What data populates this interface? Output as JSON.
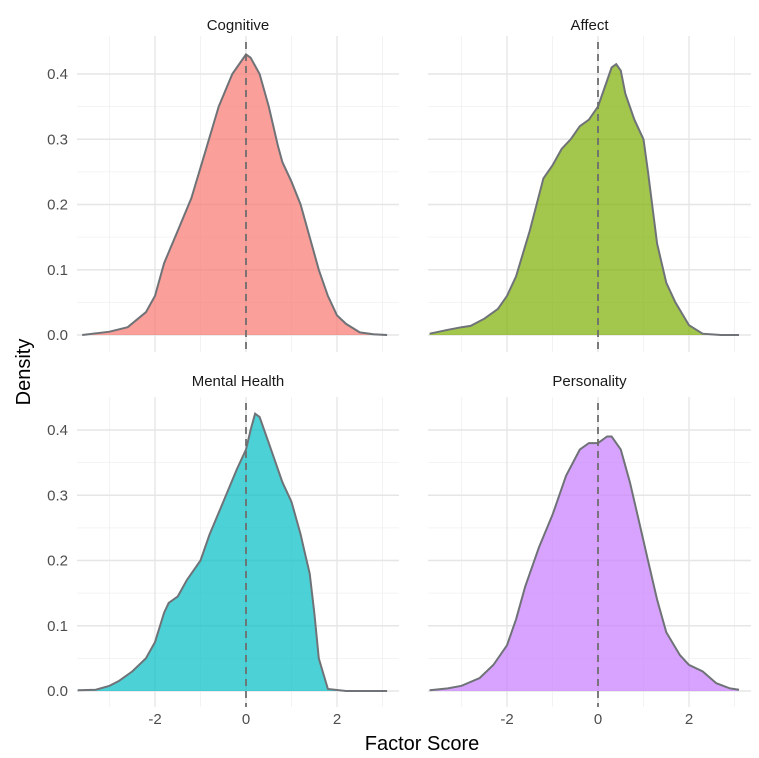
{
  "chart_data": {
    "type": "area",
    "xlabel": "Factor Score",
    "ylabel": "Density",
    "xlim": [
      -3.7,
      3.2
    ],
    "ylim": [
      0,
      0.43
    ],
    "x_ticks": [
      -2,
      0,
      2
    ],
    "y_ticks": [
      0.0,
      0.1,
      0.2,
      0.3,
      0.4
    ],
    "y_tick_labels": [
      "0.0",
      "0.1",
      "0.2",
      "0.3",
      "0.4"
    ],
    "x_tick_labels": [
      "-2",
      "0",
      "2"
    ],
    "reference_line_x": 0,
    "grid": true,
    "legend": "none",
    "panels": [
      {
        "name": "Cognitive",
        "color": "#F8766D",
        "x": [
          -3.6,
          -3.0,
          -2.6,
          -2.2,
          -2.0,
          -1.8,
          -1.5,
          -1.2,
          -0.9,
          -0.6,
          -0.3,
          -0.1,
          0.0,
          0.1,
          0.3,
          0.5,
          0.7,
          0.8,
          1.0,
          1.2,
          1.4,
          1.6,
          1.8,
          2.0,
          2.2,
          2.5,
          2.8,
          3.1
        ],
        "y": [
          0.0,
          0.005,
          0.012,
          0.035,
          0.06,
          0.11,
          0.16,
          0.21,
          0.28,
          0.35,
          0.4,
          0.42,
          0.43,
          0.425,
          0.4,
          0.35,
          0.29,
          0.265,
          0.235,
          0.2,
          0.15,
          0.1,
          0.06,
          0.03,
          0.017,
          0.004,
          0.001,
          0.0
        ]
      },
      {
        "name": "Affect",
        "color": "#7CAE00",
        "x": [
          -3.7,
          -3.3,
          -3.0,
          -2.8,
          -2.5,
          -2.2,
          -2.0,
          -1.8,
          -1.5,
          -1.2,
          -1.0,
          -0.8,
          -0.6,
          -0.4,
          -0.2,
          0.0,
          0.2,
          0.3,
          0.4,
          0.5,
          0.6,
          0.8,
          1.0,
          1.1,
          1.3,
          1.5,
          1.7,
          2.0,
          2.3,
          2.7,
          3.1
        ],
        "y": [
          0.002,
          0.008,
          0.012,
          0.014,
          0.025,
          0.04,
          0.06,
          0.09,
          0.16,
          0.24,
          0.26,
          0.285,
          0.3,
          0.32,
          0.33,
          0.35,
          0.39,
          0.41,
          0.415,
          0.405,
          0.37,
          0.33,
          0.3,
          0.25,
          0.14,
          0.08,
          0.05,
          0.015,
          0.002,
          0.0,
          0.0
        ]
      },
      {
        "name": "Mental Health",
        "color": "#00BFC4",
        "x": [
          -3.7,
          -3.3,
          -3.0,
          -2.8,
          -2.5,
          -2.2,
          -2.0,
          -1.8,
          -1.7,
          -1.5,
          -1.3,
          -1.0,
          -0.8,
          -0.5,
          -0.2,
          0.0,
          0.1,
          0.2,
          0.3,
          0.5,
          0.8,
          1.0,
          1.2,
          1.3,
          1.4,
          1.5,
          1.6,
          1.8,
          2.2,
          2.7,
          3.1
        ],
        "y": [
          0.001,
          0.002,
          0.008,
          0.015,
          0.03,
          0.05,
          0.075,
          0.12,
          0.135,
          0.145,
          0.17,
          0.2,
          0.24,
          0.29,
          0.34,
          0.37,
          0.4,
          0.425,
          0.42,
          0.38,
          0.32,
          0.29,
          0.24,
          0.21,
          0.18,
          0.12,
          0.05,
          0.003,
          0.0,
          0.0,
          0.0
        ]
      },
      {
        "name": "Personality",
        "color": "#C77CFF",
        "x": [
          -3.7,
          -3.3,
          -3.0,
          -2.6,
          -2.3,
          -2.0,
          -1.8,
          -1.6,
          -1.3,
          -1.0,
          -0.7,
          -0.4,
          -0.2,
          0.0,
          0.2,
          0.3,
          0.5,
          0.7,
          0.9,
          1.1,
          1.3,
          1.5,
          1.8,
          2.0,
          2.3,
          2.6,
          2.9,
          3.1
        ],
        "y": [
          0.001,
          0.004,
          0.008,
          0.02,
          0.04,
          0.07,
          0.11,
          0.16,
          0.22,
          0.27,
          0.33,
          0.37,
          0.38,
          0.38,
          0.39,
          0.39,
          0.37,
          0.32,
          0.26,
          0.2,
          0.14,
          0.09,
          0.055,
          0.04,
          0.03,
          0.012,
          0.004,
          0.002
        ]
      }
    ]
  }
}
